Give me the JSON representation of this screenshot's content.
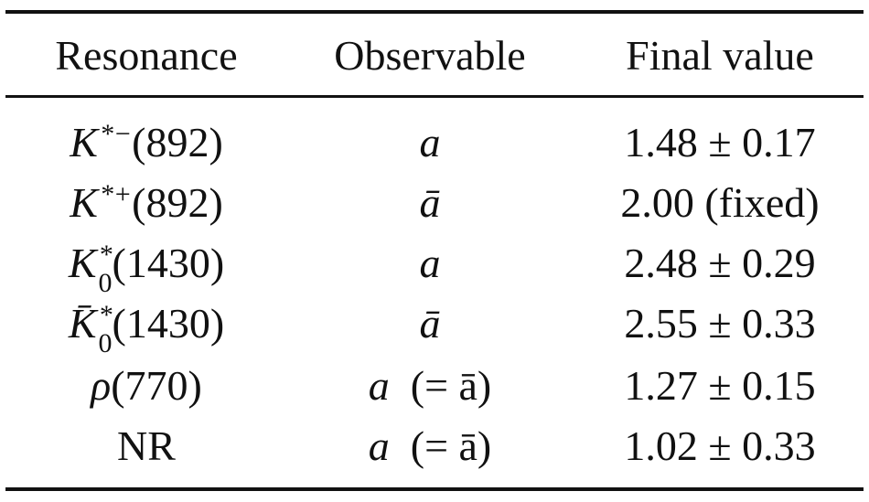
{
  "table": {
    "headers": [
      "Resonance",
      "Observable",
      "Final value"
    ],
    "rows": [
      [
        {
          "symbol": "K",
          "sup": "*−",
          "mass": "(892)"
        },
        {
          "symbol": "a"
        },
        "1.48 ± 0.17"
      ],
      [
        {
          "symbol": "K",
          "sup": "*+",
          "mass": "(892)"
        },
        {
          "symbol": "ā"
        },
        "2.00 (fixed)"
      ],
      [
        {
          "symbol": "K",
          "sup": "*",
          "sub": "0",
          "mass": "(1430)"
        },
        {
          "symbol": "a"
        },
        "2.48 ± 0.29"
      ],
      [
        {
          "symbol": "K̄",
          "sup": "*",
          "sub": "0",
          "mass": "(1430)"
        },
        {
          "symbol": "ā"
        },
        "2.55 ± 0.33"
      ],
      [
        {
          "symbol": "ρ",
          "mass": "(770)"
        },
        {
          "symbol": "a",
          "note": "(= ā)"
        },
        "1.27 ± 0.15"
      ],
      [
        {
          "text": "NR"
        },
        {
          "symbol": "a",
          "note": "(= ā)"
        },
        "1.02 ± 0.33"
      ]
    ]
  }
}
